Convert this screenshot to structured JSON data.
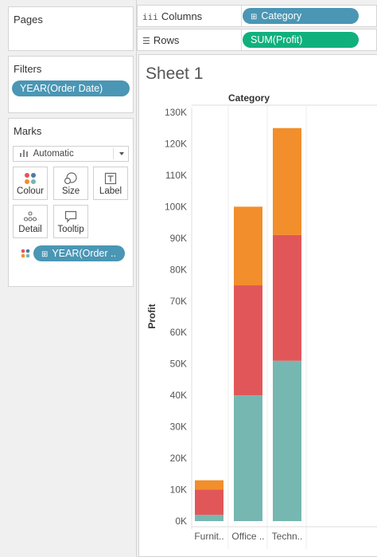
{
  "panels": {
    "pages": {
      "title": "Pages"
    },
    "filters": {
      "title": "Filters",
      "pill": "YEAR(Order Date)"
    },
    "marks": {
      "title": "Marks",
      "mark_type": "Automatic",
      "buttons": {
        "colour": "Colour",
        "size": "Size",
        "label": "Label",
        "detail": "Detail",
        "tooltip": "Tooltip"
      },
      "color_pill": "YEAR(Order ..",
      "legend_colors": [
        "#e15759",
        "#f28e2b",
        "#76b7b2",
        "#4e79a7"
      ]
    }
  },
  "shelves": {
    "columns": {
      "label": "Columns",
      "icon": "iii",
      "pill": "Category"
    },
    "rows": {
      "label": "Rows",
      "icon": "☰",
      "pill": "SUM(Profit)"
    }
  },
  "sheet": {
    "title": "Sheet 1"
  },
  "chart_data": {
    "type": "bar",
    "stacked": true,
    "header": "Category",
    "categories": [
      "Furnit..",
      "Office ..",
      "Techn.."
    ],
    "ylabel": "Profit",
    "ylim": [
      0,
      130000
    ],
    "yticks": [
      "0K",
      "10K",
      "20K",
      "30K",
      "40K",
      "50K",
      "60K",
      "70K",
      "80K",
      "90K",
      "100K",
      "110K",
      "120K",
      "130K"
    ],
    "series": [
      {
        "color": "#76b7b2",
        "values": [
          2000,
          40000,
          51000
        ]
      },
      {
        "color": "#e15759",
        "values": [
          8000,
          35000,
          40000
        ]
      },
      {
        "color": "#f28e2b",
        "values": [
          3000,
          25000,
          34000
        ]
      }
    ]
  }
}
